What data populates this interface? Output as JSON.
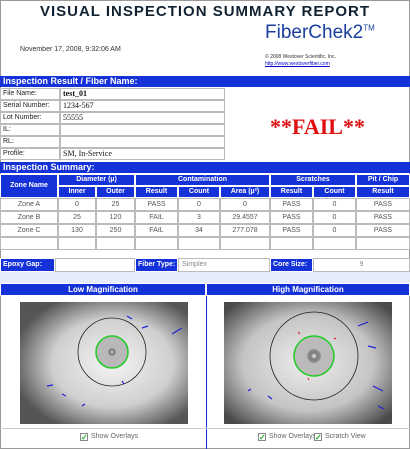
{
  "header": {
    "title": "VISUAL INSPECTION SUMMARY REPORT",
    "datetime": "November 17, 2008, 9:32:06 AM",
    "brand": "FiberChek2",
    "trademark": "TM",
    "copyright": "© 2008 Westover Scientific, Inc.",
    "url": "http://www.westoverfiber.com"
  },
  "result": {
    "heading": "Inspection Result / Fiber Name:",
    "fields": [
      {
        "label": "File Name:",
        "value": "test_01"
      },
      {
        "label": "Serial Number:",
        "value": "1234-567"
      },
      {
        "label": "Lot Number:",
        "value": "55555"
      },
      {
        "label": "IL:"
      },
      {
        "label": "RL:"
      },
      {
        "label": "Profile:",
        "value": "SM, In-Service"
      }
    ],
    "status": "**FAIL**"
  },
  "summary": {
    "heading": "Inspection Summary:",
    "groups": [
      "Zone Name",
      "Diameter (µ)",
      "Contamination",
      "Scratches",
      "Pit / Chip"
    ],
    "columns": [
      "Inner",
      "Outer",
      "Result",
      "Count",
      "Area (µ²)",
      "Result",
      "Count",
      "Result"
    ],
    "rows": [
      [
        "Zone A",
        0,
        25,
        "PASS",
        0,
        0,
        "PASS",
        0,
        "PASS"
      ],
      [
        "Zone B",
        25,
        120,
        "FAIL",
        3,
        29.4557,
        "PASS",
        0,
        "PASS"
      ],
      [
        "Zone C",
        130,
        250,
        "FAIL",
        34,
        277.078,
        "PASS",
        0,
        "PASS"
      ]
    ],
    "epoxy_gap_label": "Epoxy Gap:",
    "fiber_type_label": "Fiber Type:",
    "fiber_type": "Simplex",
    "core_size_label": "Core Size:",
    "core_size": 9
  },
  "images": {
    "low": {
      "title": "Low Magnification",
      "overlays": "Show Overlays"
    },
    "high": {
      "title": "High Magnification",
      "overlays": "Show Overlays",
      "scratch_view": "Scratch View"
    }
  }
}
